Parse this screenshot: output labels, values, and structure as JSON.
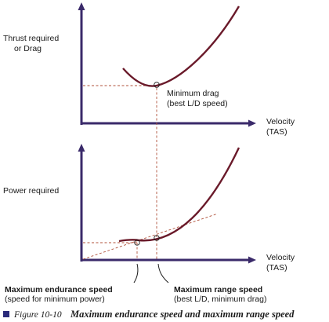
{
  "top_graph": {
    "y_label_line1": "Thrust required",
    "y_label_line2": "or  Drag",
    "x_label_line1": "Velocity",
    "x_label_line2": "(TAS)",
    "annotation_line1": "Minimum drag",
    "annotation_line2": "(best L/D speed)"
  },
  "bottom_graph": {
    "y_label": "Power required",
    "x_label_line1": "Velocity",
    "x_label_line2": "(TAS)"
  },
  "callouts": {
    "endurance_title": "Maximum endurance speed",
    "endurance_subtitle": "(speed for minimum power)",
    "range_title": "Maximum range speed",
    "range_subtitle": "(best L/D, minimum drag)"
  },
  "caption": {
    "figure_number": "Figure 10-10",
    "title": "Maximum endurance speed and maximum range speed"
  },
  "colors": {
    "axis": "#3a2a6a",
    "curve": "#6a1a2a",
    "guide": "#b0503a",
    "caption_square": "#2a2a7a"
  }
}
